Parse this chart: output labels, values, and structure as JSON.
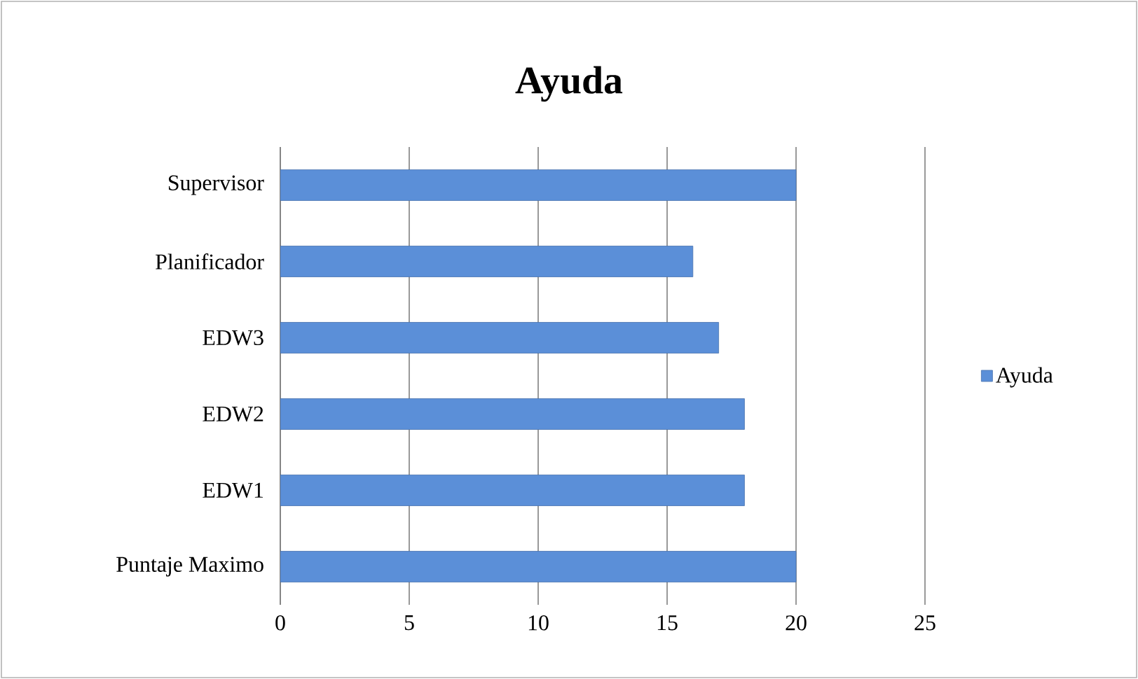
{
  "chart_data": {
    "type": "bar",
    "orientation": "horizontal",
    "title": "Ayuda",
    "categories": [
      "Supervisor",
      "Planificador",
      "EDW3",
      "EDW2",
      "EDW1",
      "Puntaje Maximo"
    ],
    "series": [
      {
        "name": "Ayuda",
        "color": "#5b8fd8",
        "values": [
          20,
          16,
          17,
          18,
          18,
          20
        ]
      }
    ],
    "xlim": [
      0,
      25
    ],
    "xticks": [
      0,
      5,
      10,
      15,
      20,
      25
    ],
    "grid": "x",
    "legend": "right"
  }
}
